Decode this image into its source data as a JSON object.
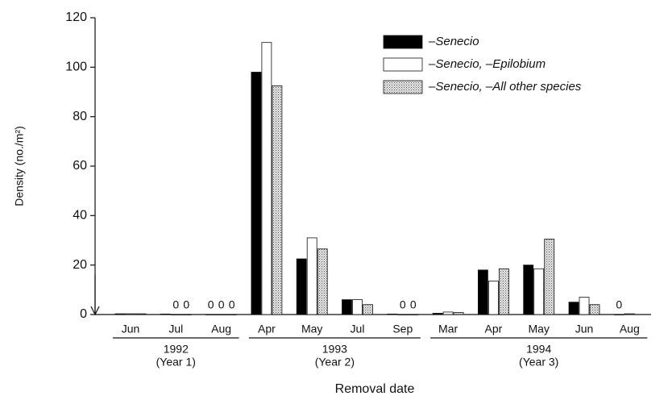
{
  "chart_data": {
    "type": "bar",
    "x_label": "Removal date",
    "y_label": "Density (no./m²)",
    "categories": [
      "Jun",
      "Jul",
      "Aug",
      "Apr",
      "May",
      "Jul",
      "Sep",
      "Mar",
      "Apr",
      "May",
      "Jun",
      "Aug"
    ],
    "groups": [
      {
        "name": "1992",
        "subtitle": "(Year 1)",
        "size": 3
      },
      {
        "name": "1993",
        "subtitle": "(Year 2)",
        "size": 4
      },
      {
        "name": "1994",
        "subtitle": "(Year 3)",
        "size": 5
      }
    ],
    "series": [
      {
        "name": "–Senecio",
        "color": "#000000",
        "values": [
          0.3,
          0.2,
          0,
          98,
          22.5,
          6,
          0.2,
          0.5,
          18,
          20,
          5,
          0
        ],
        "value_labels": [
          null,
          null,
          "0",
          null,
          null,
          null,
          null,
          null,
          null,
          null,
          null,
          "0"
        ]
      },
      {
        "name": "–Senecio, –Epilobium",
        "color": "#ffffff",
        "values": [
          0.3,
          0,
          0,
          110,
          31,
          6,
          0,
          1,
          13.5,
          18.5,
          7,
          0.3
        ],
        "value_labels": [
          null,
          "0",
          "0",
          null,
          null,
          null,
          "0",
          null,
          null,
          null,
          null,
          null
        ]
      },
      {
        "name": "–Senecio, –All other species",
        "color": "#cfcfcf",
        "values": [
          0.3,
          0,
          0,
          92.5,
          26.5,
          4,
          0,
          0.8,
          18.5,
          30.5,
          4,
          null
        ],
        "value_labels": [
          null,
          "0",
          "0",
          null,
          null,
          null,
          "0",
          null,
          null,
          null,
          null,
          null
        ]
      }
    ],
    "ylim": [
      0,
      120
    ],
    "yticks": [
      0,
      20,
      40,
      60,
      80,
      100,
      120
    ],
    "grid": false,
    "legend": "upper right"
  }
}
